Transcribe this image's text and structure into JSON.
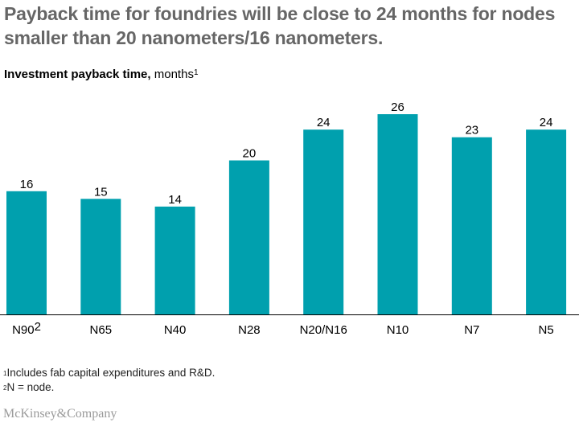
{
  "header": {
    "title": "Payback time for foundries will be close to 24 months for nodes smaller than 20 nanometers/16 nanometers.",
    "subtitle_bold": "Investment payback time,",
    "subtitle_unit": "months",
    "subtitle_sup": "1"
  },
  "colors": {
    "bar": "#00A0AE",
    "axis": "#000000",
    "title": "#666666"
  },
  "chart_data": {
    "type": "bar",
    "title": "Investment payback time, months",
    "categories": [
      "N90",
      "N65",
      "N40",
      "N28",
      "N20/N16",
      "N10",
      "N7",
      "N5"
    ],
    "category_sup": [
      "2",
      "",
      "",
      "",
      "",
      "",
      "",
      ""
    ],
    "values": [
      16,
      15,
      14,
      20,
      24,
      26,
      23,
      24
    ],
    "ylim": [
      0,
      26
    ],
    "grid": false,
    "legend": "none"
  },
  "footnotes": [
    {
      "marker": "1",
      "text": "Includes fab capital expenditures and R&D."
    },
    {
      "marker": "2",
      "text": "N = node."
    }
  ],
  "brand": "McKinsey&Company"
}
